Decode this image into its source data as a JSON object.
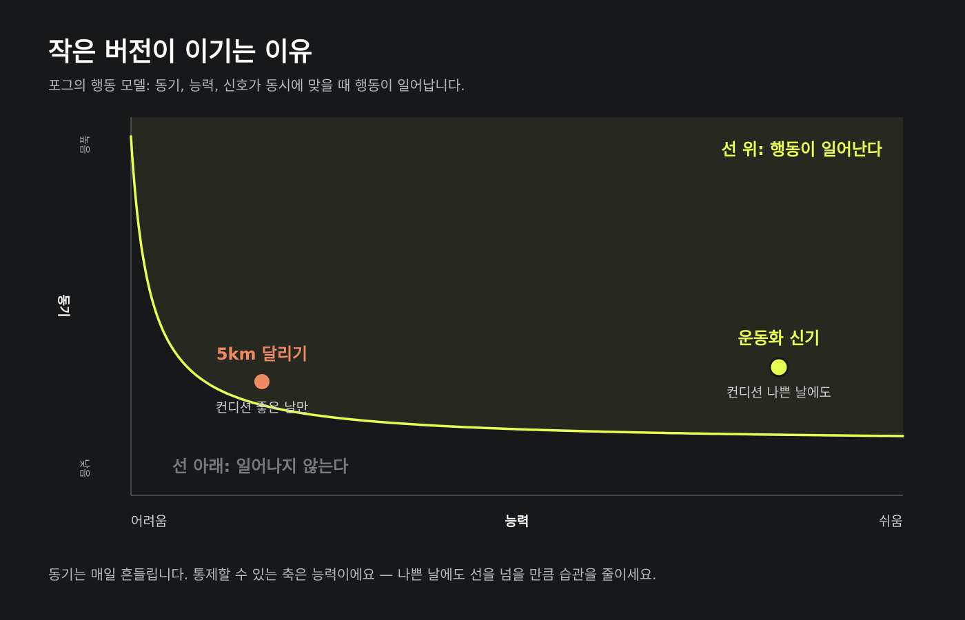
{
  "header": {
    "title": "작은 버전이 이기는 이유",
    "subtitle": "포그의 행동 모델: 동기, 능력, 신호가 동시에 맞을 때 행동이 일어납니다."
  },
  "axes": {
    "y_label": "동기",
    "y_high": "높음",
    "y_low": "낮음",
    "x_label": "능력",
    "x_low": "어려움",
    "x_high": "쉬움"
  },
  "regions": {
    "above": "선 위: 행동이 일어난다",
    "below": "선 아래: 일어나지 않는다"
  },
  "points": {
    "hard": {
      "label": "5km 달리기",
      "note": "컨디션 좋은 날만",
      "color": "#ee8a63"
    },
    "easy": {
      "label": "운동화 신기",
      "note": "컨디션 나쁜 날에도",
      "color": "#e8ff52"
    }
  },
  "colors": {
    "background": "#16181a",
    "curve": "#e8ff52",
    "above_region": "#272820",
    "axis": "#55585b"
  },
  "footer": {
    "text": "동기는 매일 흔들립니다. 통제할 수 있는 축은 능력이에요 — 나쁜 날에도 선을 넘을 만큼 습관을 줄이세요."
  }
}
